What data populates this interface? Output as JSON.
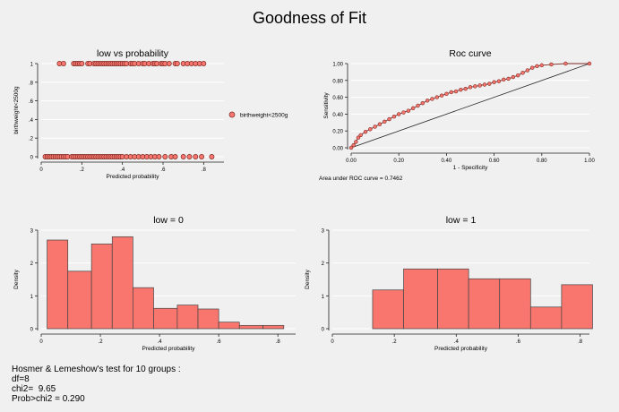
{
  "title": "Goodness of Fit",
  "colors": {
    "bar_fill": "#f8766d",
    "bar_stroke": "#444444",
    "marker_fill": "#f8766d",
    "marker_stroke": "#7a2a24",
    "line": "#7a2a24",
    "grid": "#ffffff"
  },
  "stats": {
    "line1": "Hosmer & Lemeshow's test for 10 groups :",
    "line2": "df=8",
    "line3": "chi2=  9.65",
    "line4": "Prob>chi2 = 0.290"
  },
  "chart_data": [
    {
      "type": "scatter",
      "title": "low vs probability",
      "xlabel": "Predicted probability",
      "ylabel": "birthweight<2500g",
      "xlim": [
        0,
        0.9
      ],
      "ylim": [
        0,
        1
      ],
      "xticks": [
        0,
        0.2,
        0.4,
        0.6,
        0.8
      ],
      "xtick_labels": [
        "0",
        ".2",
        ".4",
        ".6",
        ".8"
      ],
      "yticks": [
        0,
        0.2,
        0.4,
        0.6,
        0.8,
        1
      ],
      "ytick_labels": [
        "0",
        ".2",
        ".4",
        ".6",
        ".8",
        "1"
      ],
      "legend": [
        "birthweight<2500g"
      ],
      "legend_position": "right",
      "grid": true,
      "series": [
        {
          "name": "birthweight<2500g",
          "points_y0": [
            0.02,
            0.03,
            0.04,
            0.05,
            0.06,
            0.07,
            0.08,
            0.09,
            0.1,
            0.11,
            0.12,
            0.13,
            0.15,
            0.16,
            0.17,
            0.18,
            0.19,
            0.2,
            0.21,
            0.22,
            0.23,
            0.24,
            0.25,
            0.26,
            0.27,
            0.28,
            0.29,
            0.3,
            0.31,
            0.32,
            0.33,
            0.34,
            0.35,
            0.36,
            0.37,
            0.38,
            0.39,
            0.4,
            0.42,
            0.44,
            0.46,
            0.48,
            0.5,
            0.52,
            0.54,
            0.56,
            0.58,
            0.61,
            0.64,
            0.66,
            0.7,
            0.73,
            0.76,
            0.79,
            0.84
          ],
          "points_y1": [
            0.09,
            0.11,
            0.16,
            0.17,
            0.18,
            0.19,
            0.2,
            0.23,
            0.24,
            0.26,
            0.27,
            0.28,
            0.29,
            0.3,
            0.31,
            0.32,
            0.33,
            0.34,
            0.35,
            0.36,
            0.37,
            0.38,
            0.39,
            0.4,
            0.41,
            0.42,
            0.44,
            0.45,
            0.46,
            0.48,
            0.5,
            0.51,
            0.53,
            0.55,
            0.56,
            0.57,
            0.59,
            0.6,
            0.61,
            0.63,
            0.66,
            0.67,
            0.7,
            0.72,
            0.74,
            0.76,
            0.78,
            0.8
          ]
        }
      ]
    },
    {
      "type": "line",
      "title": "Roc curve",
      "xlabel": "1 - Specificity",
      "ylabel": "Sensitivity",
      "xlim": [
        0,
        1
      ],
      "ylim": [
        0,
        1
      ],
      "xticks": [
        0,
        0.2,
        0.4,
        0.6,
        0.8,
        1
      ],
      "xtick_labels": [
        "0.00",
        "0.20",
        "0.40",
        "0.60",
        "0.80",
        "1.00"
      ],
      "yticks": [
        0,
        0.2,
        0.4,
        0.6,
        0.8,
        1
      ],
      "ytick_labels": [
        "0.00",
        "0.20",
        "0.40",
        "0.60",
        "0.80",
        "1.00"
      ],
      "note": "Area under ROC curve = 0.7462",
      "grid": true,
      "roc": [
        [
          0,
          0
        ],
        [
          0.01,
          0.03
        ],
        [
          0.02,
          0.07
        ],
        [
          0.03,
          0.12
        ],
        [
          0.04,
          0.15
        ],
        [
          0.06,
          0.19
        ],
        [
          0.08,
          0.22
        ],
        [
          0.1,
          0.25
        ],
        [
          0.12,
          0.28
        ],
        [
          0.14,
          0.31
        ],
        [
          0.16,
          0.34
        ],
        [
          0.18,
          0.37
        ],
        [
          0.2,
          0.4
        ],
        [
          0.22,
          0.42
        ],
        [
          0.24,
          0.44
        ],
        [
          0.26,
          0.47
        ],
        [
          0.28,
          0.5
        ],
        [
          0.3,
          0.53
        ],
        [
          0.32,
          0.56
        ],
        [
          0.34,
          0.58
        ],
        [
          0.36,
          0.6
        ],
        [
          0.38,
          0.62
        ],
        [
          0.4,
          0.64
        ],
        [
          0.42,
          0.66
        ],
        [
          0.44,
          0.67
        ],
        [
          0.46,
          0.69
        ],
        [
          0.48,
          0.7
        ],
        [
          0.5,
          0.72
        ],
        [
          0.52,
          0.73
        ],
        [
          0.54,
          0.74
        ],
        [
          0.56,
          0.75
        ],
        [
          0.58,
          0.76
        ],
        [
          0.6,
          0.78
        ],
        [
          0.62,
          0.79
        ],
        [
          0.64,
          0.81
        ],
        [
          0.66,
          0.82
        ],
        [
          0.68,
          0.84
        ],
        [
          0.7,
          0.86
        ],
        [
          0.72,
          0.89
        ],
        [
          0.74,
          0.92
        ],
        [
          0.76,
          0.95
        ],
        [
          0.78,
          0.97
        ],
        [
          0.8,
          0.98
        ],
        [
          0.84,
          0.99
        ],
        [
          0.9,
          1.0
        ],
        [
          1.0,
          1.0
        ]
      ],
      "reference": [
        [
          0,
          0
        ],
        [
          1,
          1
        ]
      ]
    },
    {
      "type": "bar",
      "title": "low = 0",
      "xlabel": "Predicted probability",
      "ylabel": "Density",
      "xlim": [
        0,
        0.86
      ],
      "ylim": [
        0,
        3
      ],
      "xticks": [
        0,
        0.2,
        0.4,
        0.6,
        0.8
      ],
      "xtick_labels": [
        "0",
        ".2",
        ".4",
        ".6",
        ".8"
      ],
      "yticks": [
        0,
        1,
        2,
        3
      ],
      "ytick_labels": [
        "0",
        "1",
        "2",
        "3"
      ],
      "grid": true,
      "bin_edges": [
        0.02,
        0.09,
        0.17,
        0.24,
        0.31,
        0.38,
        0.46,
        0.53,
        0.6,
        0.67,
        0.75,
        0.82
      ],
      "values": [
        2.7,
        1.75,
        2.58,
        2.8,
        1.25,
        0.62,
        0.72,
        0.6,
        0.2,
        0.1,
        0.1
      ]
    },
    {
      "type": "bar",
      "title": "low = 1",
      "xlabel": "Predicted probability",
      "ylabel": "Density",
      "xlim": [
        0,
        0.83
      ],
      "ylim": [
        0,
        3
      ],
      "xticks": [
        0,
        0.2,
        0.4,
        0.6,
        0.8
      ],
      "xtick_labels": [
        "0",
        ".2",
        ".4",
        ".6",
        ".8"
      ],
      "yticks": [
        0,
        1,
        2,
        3
      ],
      "ytick_labels": [
        "0",
        "1",
        "2",
        "3"
      ],
      "grid": true,
      "bin_edges": [
        0.13,
        0.23,
        0.34,
        0.44,
        0.54,
        0.64,
        0.74,
        0.84
      ],
      "values": [
        1.18,
        1.82,
        1.82,
        1.52,
        1.52,
        0.66,
        1.34
      ]
    }
  ]
}
